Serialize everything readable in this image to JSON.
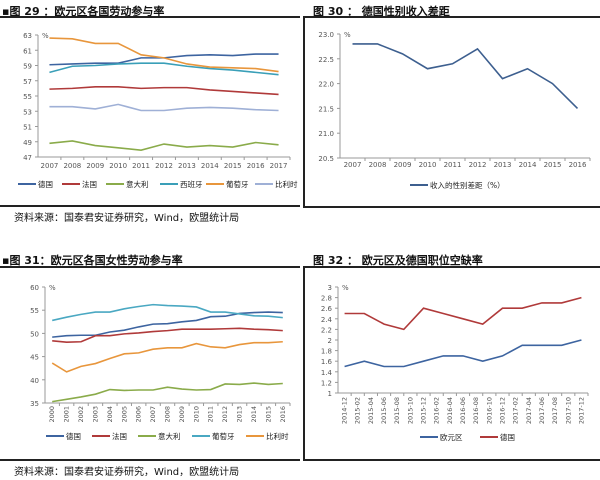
{
  "figures": [
    {
      "title": "▪图 29 ：欧元区各国劳动参与率",
      "source": "资料来源：国泰君安证券研究，Wind，欧盟统计局"
    },
    {
      "title": "图 30 ：  德国性别收入差距"
    },
    {
      "title": "▪图 31：欧元区各国女性劳动参与率",
      "source": "资料来源：国泰君安证券研究，Wind，欧盟统计局"
    },
    {
      "title": "图 32 ：  欧元区及德国职位空缺率"
    }
  ],
  "chart_data": [
    {
      "type": "line",
      "unit": "%",
      "x": [
        "2007",
        "2008",
        "2009",
        "2010",
        "2011",
        "2012",
        "2013",
        "2014",
        "2015",
        "2016",
        "2017"
      ],
      "ylim": [
        47,
        63
      ],
      "yticks": [
        47,
        49,
        51,
        53,
        55,
        57,
        59,
        61,
        63
      ],
      "grid": false,
      "legend": "bottom",
      "series": [
        {
          "name": "德国",
          "color": "#3d64a0",
          "values": [
            59.1,
            59.2,
            59.3,
            59.3,
            60.0,
            60.0,
            60.3,
            60.4,
            60.3,
            60.5,
            60.5
          ]
        },
        {
          "name": "法国",
          "color": "#b03a3a",
          "values": [
            55.9,
            56.0,
            56.2,
            56.2,
            56.0,
            56.1,
            56.1,
            55.8,
            55.6,
            55.4,
            55.2
          ]
        },
        {
          "name": "意大利",
          "color": "#8aab4a",
          "values": [
            48.8,
            49.1,
            48.5,
            48.2,
            47.9,
            48.7,
            48.3,
            48.5,
            48.3,
            48.9,
            48.6
          ]
        },
        {
          "name": "西班牙",
          "color": "#3a9fb8",
          "values": [
            58.1,
            58.9,
            59.0,
            59.2,
            59.3,
            59.3,
            58.9,
            58.6,
            58.4,
            58.1,
            57.8
          ]
        },
        {
          "name": "葡萄牙",
          "color": "#e8963c",
          "values": [
            62.6,
            62.5,
            61.9,
            61.9,
            60.4,
            60.0,
            59.2,
            58.8,
            58.7,
            58.6,
            58.2
          ]
        },
        {
          "name": "比利时",
          "color": "#9fb0d6",
          "values": [
            53.6,
            53.6,
            53.3,
            53.9,
            53.1,
            53.1,
            53.4,
            53.5,
            53.4,
            53.2,
            53.1
          ]
        }
      ]
    },
    {
      "type": "line",
      "unit": "%",
      "x": [
        "2007",
        "2008",
        "2009",
        "2010",
        "2011",
        "2012",
        "2013",
        "2014",
        "2015",
        "2016"
      ],
      "ylim": [
        20.5,
        23.0
      ],
      "yticks": [
        "20.5",
        "21.0",
        "21.5",
        "22.0",
        "22.5",
        "23.0"
      ],
      "grid": false,
      "legend": "bottom",
      "series": [
        {
          "name": "收入的性别差距（%）",
          "color": "#3d5f8f",
          "values": [
            22.8,
            22.8,
            22.6,
            22.3,
            22.4,
            22.7,
            22.1,
            22.3,
            22.0,
            21.5
          ]
        }
      ]
    },
    {
      "type": "line",
      "unit": "%",
      "x": [
        "2000",
        "2001",
        "2002",
        "2003",
        "2004",
        "2005",
        "2006",
        "2007",
        "2008",
        "2009",
        "2010",
        "2011",
        "2012",
        "2013",
        "2014",
        "2015",
        "2016"
      ],
      "ylim": [
        35,
        60
      ],
      "yticks": [
        35,
        40,
        45,
        50,
        55,
        60
      ],
      "grid": false,
      "legend": "bottom",
      "series": [
        {
          "name": "德国",
          "color": "#3d64a0",
          "values": [
            49.2,
            49.5,
            49.6,
            49.6,
            50.3,
            50.7,
            51.4,
            52.0,
            52.1,
            52.5,
            52.8,
            53.6,
            53.7,
            54.3,
            54.5,
            54.6,
            54.5
          ]
        },
        {
          "name": "法国",
          "color": "#b03a3a",
          "values": [
            48.4,
            48.1,
            48.2,
            49.5,
            49.5,
            49.9,
            50.1,
            50.4,
            50.6,
            50.9,
            50.9,
            50.9,
            51.0,
            51.1,
            50.9,
            50.8,
            50.6
          ]
        },
        {
          "name": "意大利",
          "color": "#8aab4a",
          "values": [
            35.3,
            35.8,
            36.3,
            36.9,
            37.9,
            37.7,
            37.8,
            37.8,
            38.4,
            38.0,
            37.8,
            37.9,
            39.1,
            39.0,
            39.3,
            39.0,
            39.2
          ]
        },
        {
          "name": "葡萄牙",
          "color": "#4aa8c2",
          "values": [
            52.8,
            53.5,
            54.1,
            54.6,
            54.6,
            55.3,
            55.8,
            56.2,
            56.0,
            55.9,
            55.7,
            54.6,
            54.6,
            54.2,
            53.8,
            53.7,
            53.4
          ]
        },
        {
          "name": "比利时",
          "color": "#e8963c",
          "values": [
            43.6,
            41.7,
            42.9,
            43.5,
            44.6,
            45.6,
            45.8,
            46.6,
            46.9,
            46.9,
            47.8,
            47.1,
            46.9,
            47.6,
            48.0,
            48.0,
            48.2
          ]
        }
      ]
    },
    {
      "type": "line",
      "unit": "%",
      "x_labels": [
        "2014-12",
        "2015-02",
        "2015-04",
        "2015-06",
        "2015-08",
        "2015-10",
        "2015-12",
        "2016-02",
        "2016-04",
        "2016-06",
        "2016-08",
        "2016-10",
        "2016-12",
        "2017-02",
        "2017-04",
        "2017-06",
        "2017-08",
        "2017-10",
        "2017-12"
      ],
      "x": [
        "2014-12",
        "2015-03",
        "2015-06",
        "2015-09",
        "2015-12",
        "2016-03",
        "2016-06",
        "2016-09",
        "2016-12",
        "2017-03",
        "2017-06",
        "2017-09",
        "2017-12"
      ],
      "ylim": [
        1,
        3
      ],
      "yticks": [
        "1",
        "1.2",
        "1.4",
        "1.6",
        "1.8",
        "2",
        "2.2",
        "2.4",
        "2.6",
        "2.8",
        "3"
      ],
      "grid": false,
      "legend": "bottom",
      "series": [
        {
          "name": "欧元区",
          "color": "#3d64a0",
          "values": [
            1.5,
            1.6,
            1.5,
            1.5,
            1.6,
            1.7,
            1.7,
            1.6,
            1.7,
            1.9,
            1.9,
            1.9,
            2.0
          ]
        },
        {
          "name": "德国",
          "color": "#b03a3a",
          "values": [
            2.5,
            2.5,
            2.3,
            2.2,
            2.6,
            2.5,
            2.4,
            2.3,
            2.6,
            2.6,
            2.7,
            2.7,
            2.8
          ]
        }
      ]
    }
  ]
}
